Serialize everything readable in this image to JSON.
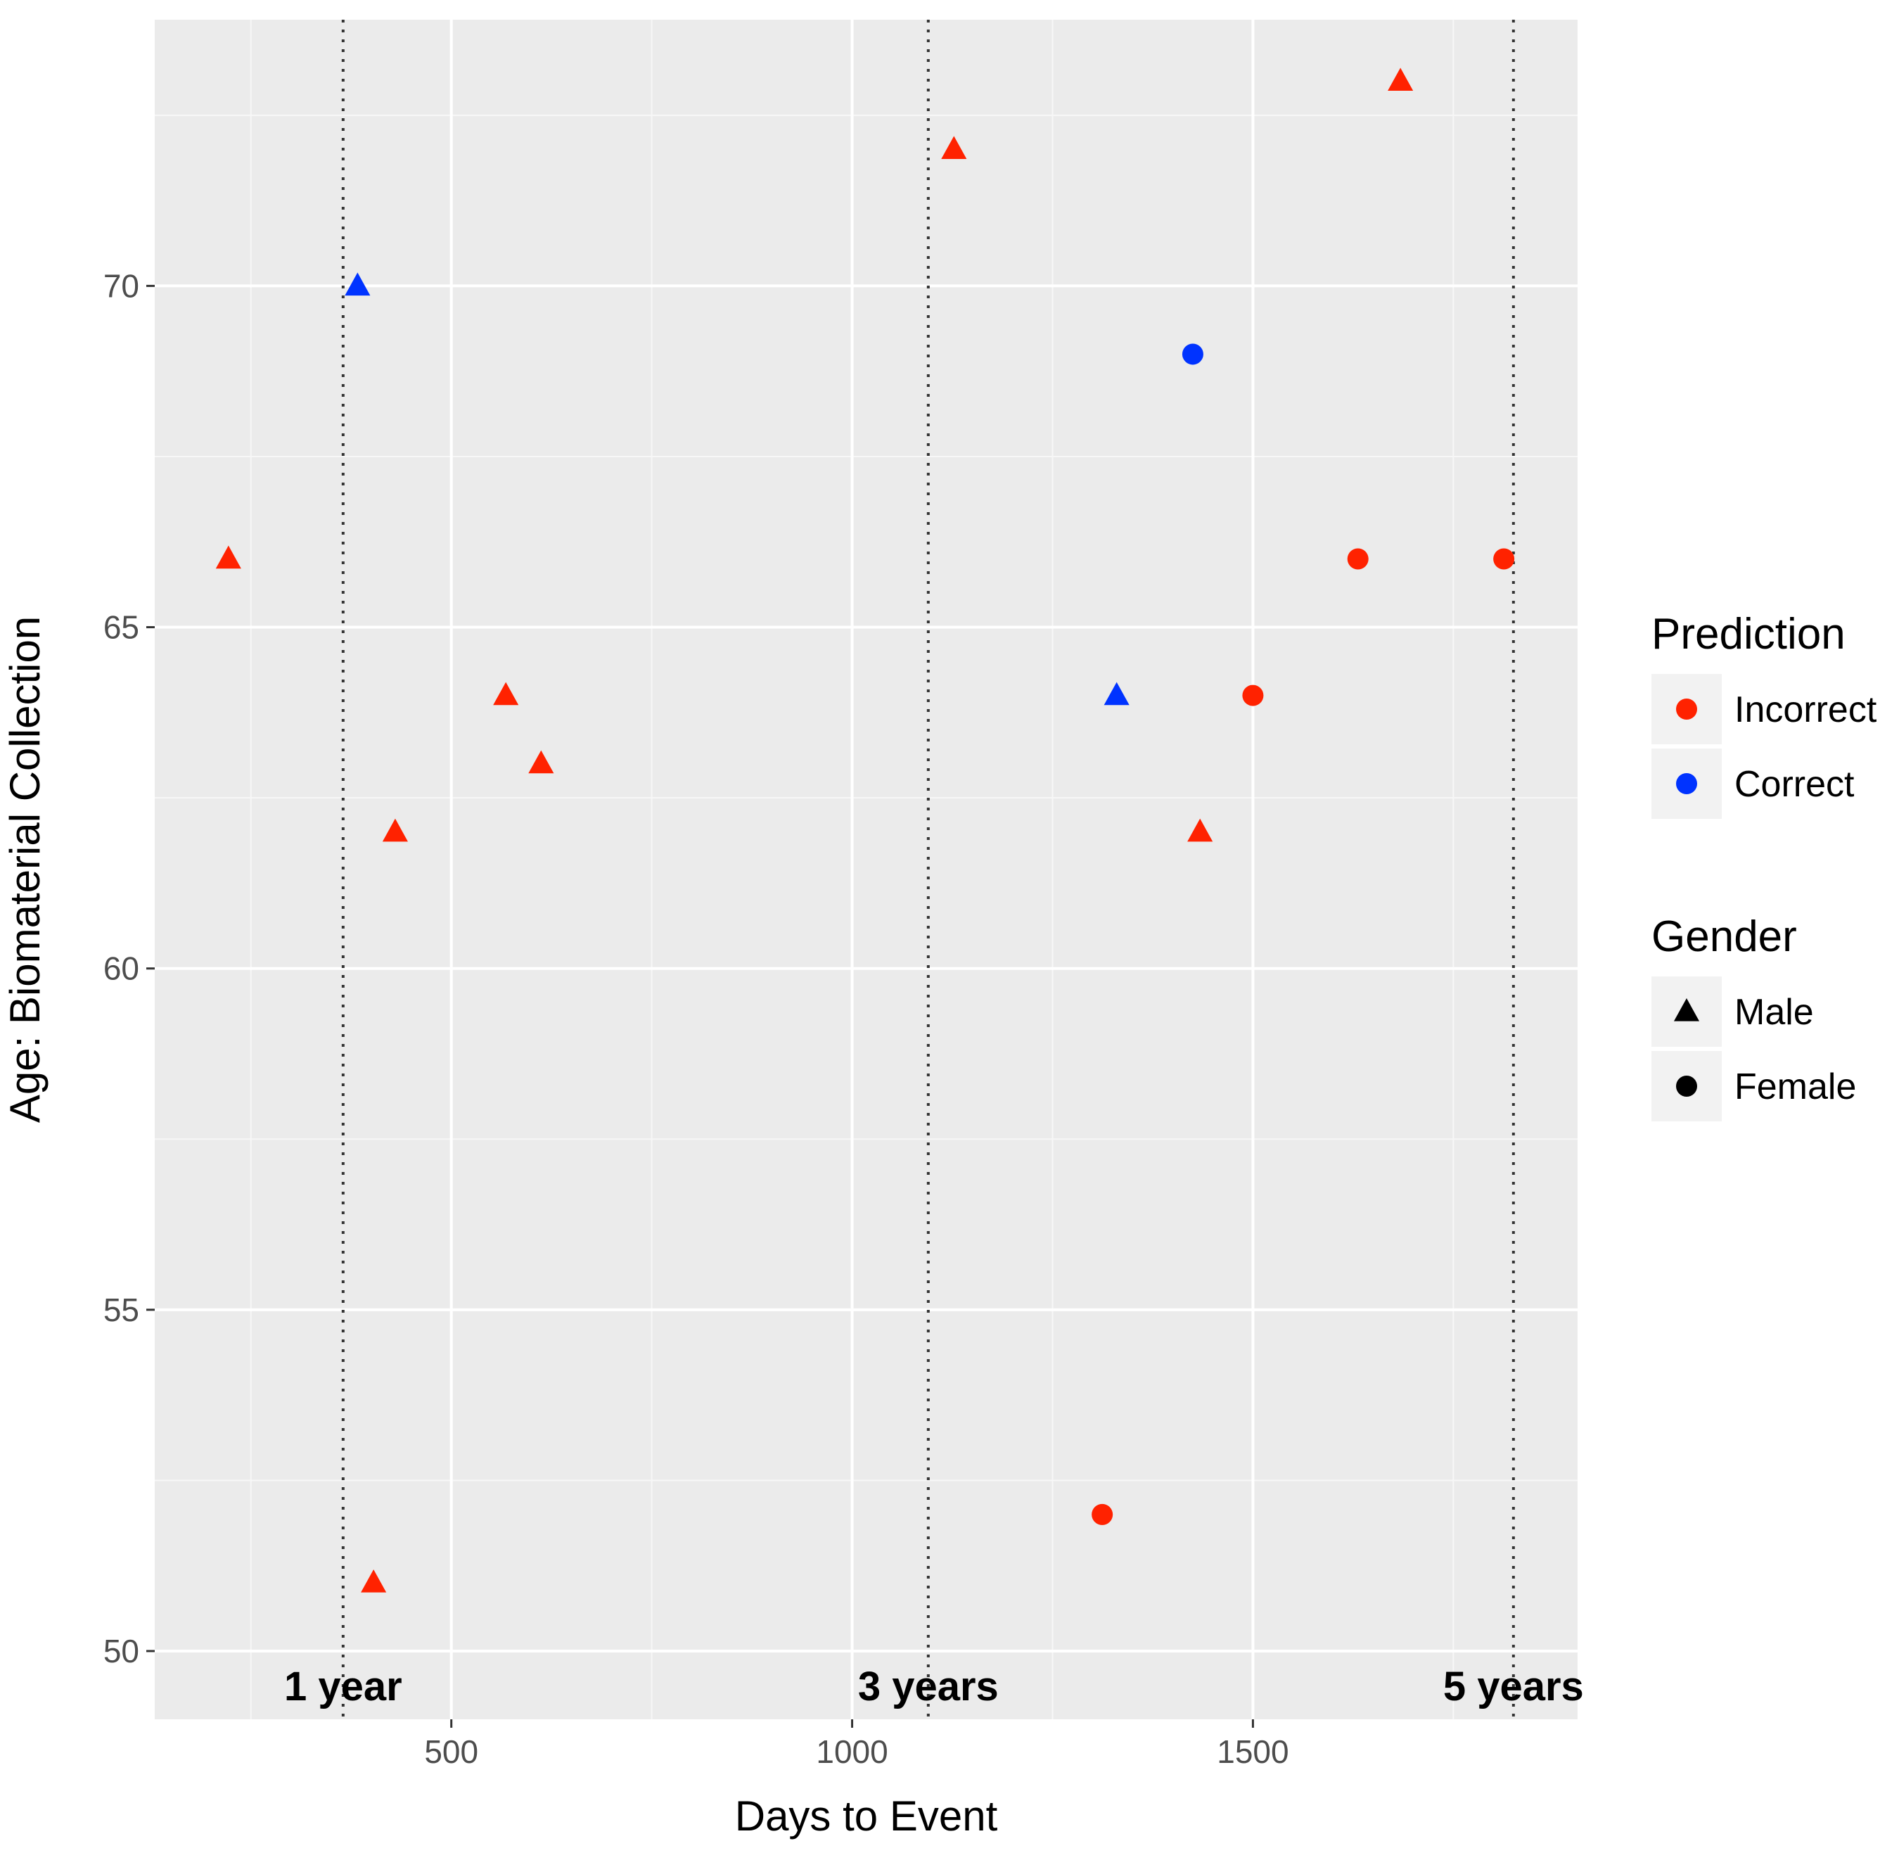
{
  "chart_data": {
    "type": "scatter",
    "xlabel": "Days to Event",
    "ylabel": "Age: Biomaterial Collection",
    "xlim": [
      130,
      1905
    ],
    "ylim": [
      49.0,
      73.9
    ],
    "x_ticks": [
      500,
      1000,
      1500
    ],
    "x_tick_labels": [
      "500",
      "1000",
      "1500"
    ],
    "y_ticks": [
      50,
      55,
      60,
      65,
      70
    ],
    "y_tick_labels": [
      "50",
      "55",
      "60",
      "65",
      "70"
    ],
    "grid": true,
    "reference_lines": [
      {
        "x": 365,
        "label": "1 year"
      },
      {
        "x": 1095,
        "label": "3 years"
      },
      {
        "x": 1825,
        "label": "5 years"
      }
    ],
    "colors": {
      "Incorrect": "#ff2200",
      "Correct": "#0033ff"
    },
    "legends": [
      {
        "title": "Prediction",
        "entries": [
          {
            "label": "Incorrect",
            "color": "#ff2200",
            "shape": "circle"
          },
          {
            "label": "Correct",
            "color": "#0033ff",
            "shape": "circle"
          }
        ]
      },
      {
        "title": "Gender",
        "entries": [
          {
            "label": "Male",
            "color": "#000000",
            "shape": "triangle"
          },
          {
            "label": "Female",
            "color": "#000000",
            "shape": "circle"
          }
        ]
      }
    ],
    "legend_position": "right",
    "points": [
      {
        "x": 222,
        "y": 66,
        "prediction": "Incorrect",
        "gender": "Male"
      },
      {
        "x": 383,
        "y": 70,
        "prediction": "Correct",
        "gender": "Male"
      },
      {
        "x": 403,
        "y": 51,
        "prediction": "Incorrect",
        "gender": "Male"
      },
      {
        "x": 430,
        "y": 62,
        "prediction": "Incorrect",
        "gender": "Male"
      },
      {
        "x": 568,
        "y": 64,
        "prediction": "Incorrect",
        "gender": "Male"
      },
      {
        "x": 612,
        "y": 63,
        "prediction": "Incorrect",
        "gender": "Male"
      },
      {
        "x": 1127,
        "y": 72,
        "prediction": "Incorrect",
        "gender": "Male"
      },
      {
        "x": 1312,
        "y": 52,
        "prediction": "Incorrect",
        "gender": "Female"
      },
      {
        "x": 1330,
        "y": 64,
        "prediction": "Correct",
        "gender": "Male"
      },
      {
        "x": 1425,
        "y": 69,
        "prediction": "Correct",
        "gender": "Female"
      },
      {
        "x": 1434,
        "y": 62,
        "prediction": "Incorrect",
        "gender": "Male"
      },
      {
        "x": 1500,
        "y": 64,
        "prediction": "Incorrect",
        "gender": "Female"
      },
      {
        "x": 1631,
        "y": 66,
        "prediction": "Incorrect",
        "gender": "Female"
      },
      {
        "x": 1684,
        "y": 73,
        "prediction": "Incorrect",
        "gender": "Male"
      },
      {
        "x": 1813,
        "y": 66,
        "prediction": "Incorrect",
        "gender": "Female"
      }
    ]
  }
}
